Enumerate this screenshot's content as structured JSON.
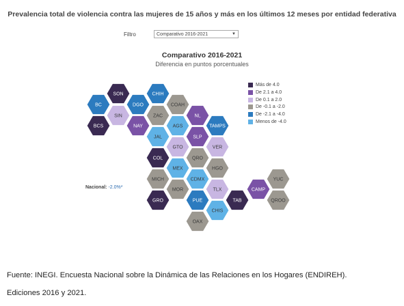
{
  "header": {
    "title": "Prevalencia total de violencia contra las mujeres de 15 años y más en los últimos 12 meses por entidad federativa"
  },
  "filter": {
    "label": "Filtro",
    "value": "Comparativo 2016-2021"
  },
  "chart": {
    "title": "Comparativo 2016-2021",
    "subtitle": "Diferencia en puntos porcentuales"
  },
  "national": {
    "label": "Nacional:",
    "value": "-2.0%*"
  },
  "legend": [
    {
      "label": "Más de 4.0",
      "color": "#3a2a52"
    },
    {
      "label": "De 2.1 a 4.0",
      "color": "#7a52a6"
    },
    {
      "label": "De 0.1 a 2.0",
      "color": "#c8b6e2"
    },
    {
      "label": "De -0.1 a -2.0",
      "color": "#9c9890"
    },
    {
      "label": "De -2.1 a -4.0",
      "color": "#2c7bbf"
    },
    {
      "label": "Menos de -4.0",
      "color": "#5fb2e6"
    }
  ],
  "states": [
    {
      "code": "BC",
      "category": 4
    },
    {
      "code": "SON",
      "category": 0
    },
    {
      "code": "CHIH",
      "category": 4
    },
    {
      "code": "BCS",
      "category": 0
    },
    {
      "code": "SIN",
      "category": 2
    },
    {
      "code": "DGO",
      "category": 4
    },
    {
      "code": "COAH",
      "category": 3
    },
    {
      "code": "NAY",
      "category": 1
    },
    {
      "code": "ZAC",
      "category": 3
    },
    {
      "code": "NL",
      "category": 1
    },
    {
      "code": "AGS",
      "category": 5
    },
    {
      "code": "TAMPS",
      "category": 4
    },
    {
      "code": "JAL",
      "category": 5
    },
    {
      "code": "SLP",
      "category": 1
    },
    {
      "code": "GTO",
      "category": 2
    },
    {
      "code": "VER",
      "category": 2
    },
    {
      "code": "COL",
      "category": 0
    },
    {
      "code": "QRO",
      "category": 3
    },
    {
      "code": "MEX",
      "category": 5
    },
    {
      "code": "HGO",
      "category": 3
    },
    {
      "code": "MICH",
      "category": 3
    },
    {
      "code": "CDMX",
      "category": 5
    },
    {
      "code": "YUC",
      "category": 3
    },
    {
      "code": "MOR",
      "category": 3
    },
    {
      "code": "TLX",
      "category": 2
    },
    {
      "code": "CAMP",
      "category": 1
    },
    {
      "code": "GRO",
      "category": 0
    },
    {
      "code": "PUE",
      "category": 4
    },
    {
      "code": "TAB",
      "category": 0
    },
    {
      "code": "QROO",
      "category": 3
    },
    {
      "code": "CHIS",
      "category": 5
    },
    {
      "code": "OAX",
      "category": 3
    }
  ],
  "source": {
    "line1": "Fuente: INEGI. Encuesta Nacional sobre la Dinámica de las Relaciones en los Hogares (ENDIREH).",
    "line2": "Ediciones 2016 y 2021."
  }
}
